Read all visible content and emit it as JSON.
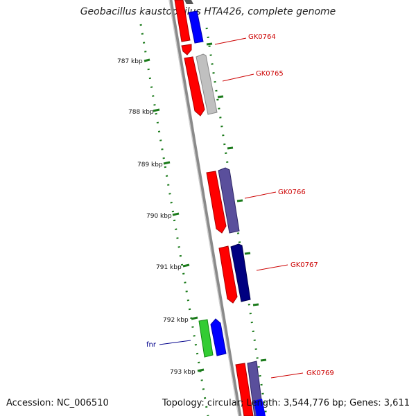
{
  "title": "Geobacillus kaustophilus HTA426, complete genome",
  "footer": {
    "accession": "Accession: NC_006510",
    "summary": "Topology: circular; Length: 3,544,776 bp; Genes: 3,611"
  },
  "ticks": [
    "787 kbp",
    "788 kbp",
    "789 kbp",
    "790 kbp",
    "791 kbp",
    "792 kbp",
    "793 kbp"
  ],
  "genes": [
    {
      "label": "GK0764",
      "color": "#cc0000"
    },
    {
      "label": "GK0765",
      "color": "#cc0000"
    },
    {
      "label": "GK0766",
      "color": "#cc0000"
    },
    {
      "label": "GK0767",
      "color": "#cc0000"
    },
    {
      "label": "fnr",
      "color": "#00008b"
    },
    {
      "label": "GK0769",
      "color": "#cc0000"
    }
  ],
  "colors": {
    "cds": "#ff0000",
    "backbone": "#8a8a8a",
    "tick_dots": "#1a7a1a",
    "gene_blue": "#0000ff",
    "gene_gray": "#c0c0c0",
    "gene_slate": "#4b3f8c",
    "gene_navy": "#000080",
    "gene_green": "#33cc33"
  }
}
